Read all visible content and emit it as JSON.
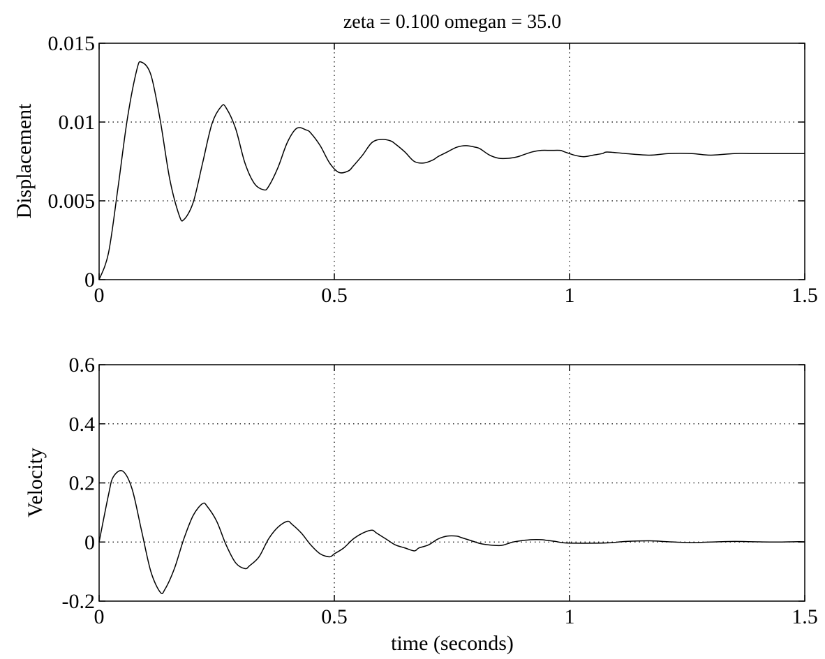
{
  "chart_data": [
    {
      "type": "line",
      "title": "zeta = 0.100   omegan =  35.0",
      "xlabel": "",
      "ylabel": "Displacement",
      "xlim": [
        0,
        1.5
      ],
      "ylim": [
        0,
        0.015
      ],
      "xticks": [
        0,
        0.5,
        1,
        1.5
      ],
      "xtick_labels": [
        "0",
        "0.5",
        "1",
        "1.5"
      ],
      "yticks": [
        0,
        0.005,
        0.01,
        0.015
      ],
      "ytick_labels": [
        "0",
        "0.005",
        "0.01",
        "0.015"
      ],
      "grid": true,
      "series": [
        {
          "x": [
            0,
            0.02,
            0.04,
            0.06,
            0.08,
            0.09,
            0.11,
            0.13,
            0.15,
            0.17,
            0.18,
            0.2,
            0.22,
            0.24,
            0.26,
            0.27,
            0.29,
            0.31,
            0.33,
            0.35,
            0.36,
            0.38,
            0.4,
            0.42,
            0.44,
            0.45,
            0.47,
            0.49,
            0.51,
            0.53,
            0.54,
            0.56,
            0.58,
            0.6,
            0.62,
            0.63,
            0.65,
            0.67,
            0.69,
            0.71,
            0.72,
            0.74,
            0.76,
            0.78,
            0.8,
            0.81,
            0.83,
            0.85,
            0.87,
            0.89,
            0.9,
            0.92,
            0.94,
            0.96,
            0.98,
            0.99,
            1.01,
            1.03,
            1.05,
            1.07,
            1.08,
            1.12,
            1.17,
            1.21,
            1.26,
            1.3,
            1.35,
            1.39,
            1.44,
            1.48,
            1.5
          ],
          "y": [
            0,
            0.0017,
            0.0058,
            0.0102,
            0.0133,
            0.0138,
            0.013,
            0.0101,
            0.0064,
            0.0041,
            0.0038,
            0.0049,
            0.0074,
            0.0099,
            0.011,
            0.0109,
            0.0096,
            0.0074,
            0.0061,
            0.0057,
            0.0059,
            0.0071,
            0.0087,
            0.0096,
            0.0095,
            0.0093,
            0.0085,
            0.0074,
            0.0068,
            0.0069,
            0.0072,
            0.0079,
            0.0087,
            0.0089,
            0.0088,
            0.0086,
            0.0081,
            0.0075,
            0.0074,
            0.0076,
            0.0078,
            0.0081,
            0.0084,
            0.0085,
            0.0084,
            0.0083,
            0.0079,
            0.0077,
            0.0077,
            0.0078,
            0.0079,
            0.0081,
            0.0082,
            0.0082,
            0.0082,
            0.0081,
            0.0079,
            0.0078,
            0.0079,
            0.008,
            0.0081,
            0.008,
            0.0079,
            0.008,
            0.008,
            0.0079,
            0.008,
            0.008,
            0.008,
            0.008,
            0.008
          ]
        }
      ]
    },
    {
      "type": "line",
      "title": "",
      "xlabel": "time (seconds)",
      "ylabel": "Velocity",
      "xlim": [
        0,
        1.5
      ],
      "ylim": [
        -0.2,
        0.6
      ],
      "xticks": [
        0,
        0.5,
        1,
        1.5
      ],
      "xtick_labels": [
        "0",
        "0.5",
        "1",
        "1.5"
      ],
      "yticks": [
        -0.2,
        0,
        0.2,
        0.4,
        0.6
      ],
      "ytick_labels": [
        "-0.2",
        "0",
        "0.2",
        "0.4",
        "0.6"
      ],
      "grid": true,
      "series": [
        {
          "x": [
            0,
            0.02,
            0.03,
            0.05,
            0.07,
            0.09,
            0.11,
            0.13,
            0.14,
            0.16,
            0.18,
            0.2,
            0.22,
            0.23,
            0.25,
            0.27,
            0.29,
            0.31,
            0.32,
            0.34,
            0.36,
            0.38,
            0.4,
            0.41,
            0.43,
            0.45,
            0.47,
            0.49,
            0.5,
            0.52,
            0.54,
            0.56,
            0.58,
            0.59,
            0.61,
            0.63,
            0.65,
            0.67,
            0.68,
            0.7,
            0.72,
            0.74,
            0.76,
            0.77,
            0.79,
            0.81,
            0.83,
            0.85,
            0.86,
            0.88,
            0.9,
            0.92,
            0.94,
            0.95,
            0.97,
            0.99,
            1.03,
            1.08,
            1.12,
            1.17,
            1.21,
            1.26,
            1.3,
            1.35,
            1.39,
            1.44,
            1.48,
            1.5
          ],
          "y": [
            0,
            0.16,
            0.22,
            0.24,
            0.18,
            0.04,
            -0.1,
            -0.17,
            -0.16,
            -0.09,
            0.01,
            0.09,
            0.13,
            0.12,
            0.07,
            -0.01,
            -0.07,
            -0.09,
            -0.08,
            -0.05,
            0.01,
            0.05,
            0.07,
            0.06,
            0.03,
            -0.01,
            -0.04,
            -0.05,
            -0.04,
            -0.02,
            0.01,
            0.03,
            0.04,
            0.03,
            0.01,
            -0.01,
            -0.02,
            -0.03,
            -0.02,
            -0.01,
            0.01,
            0.02,
            0.02,
            0.015,
            0.005,
            -0.005,
            -0.01,
            -0.012,
            -0.01,
            0,
            0.005,
            0.008,
            0.008,
            0.006,
            0.002,
            -0.003,
            -0.004,
            -0.003,
            0.002,
            0.004,
            0.001,
            -0.002,
            0,
            0.002,
            0.001,
            0,
            0.001,
            0.001
          ]
        }
      ]
    }
  ]
}
